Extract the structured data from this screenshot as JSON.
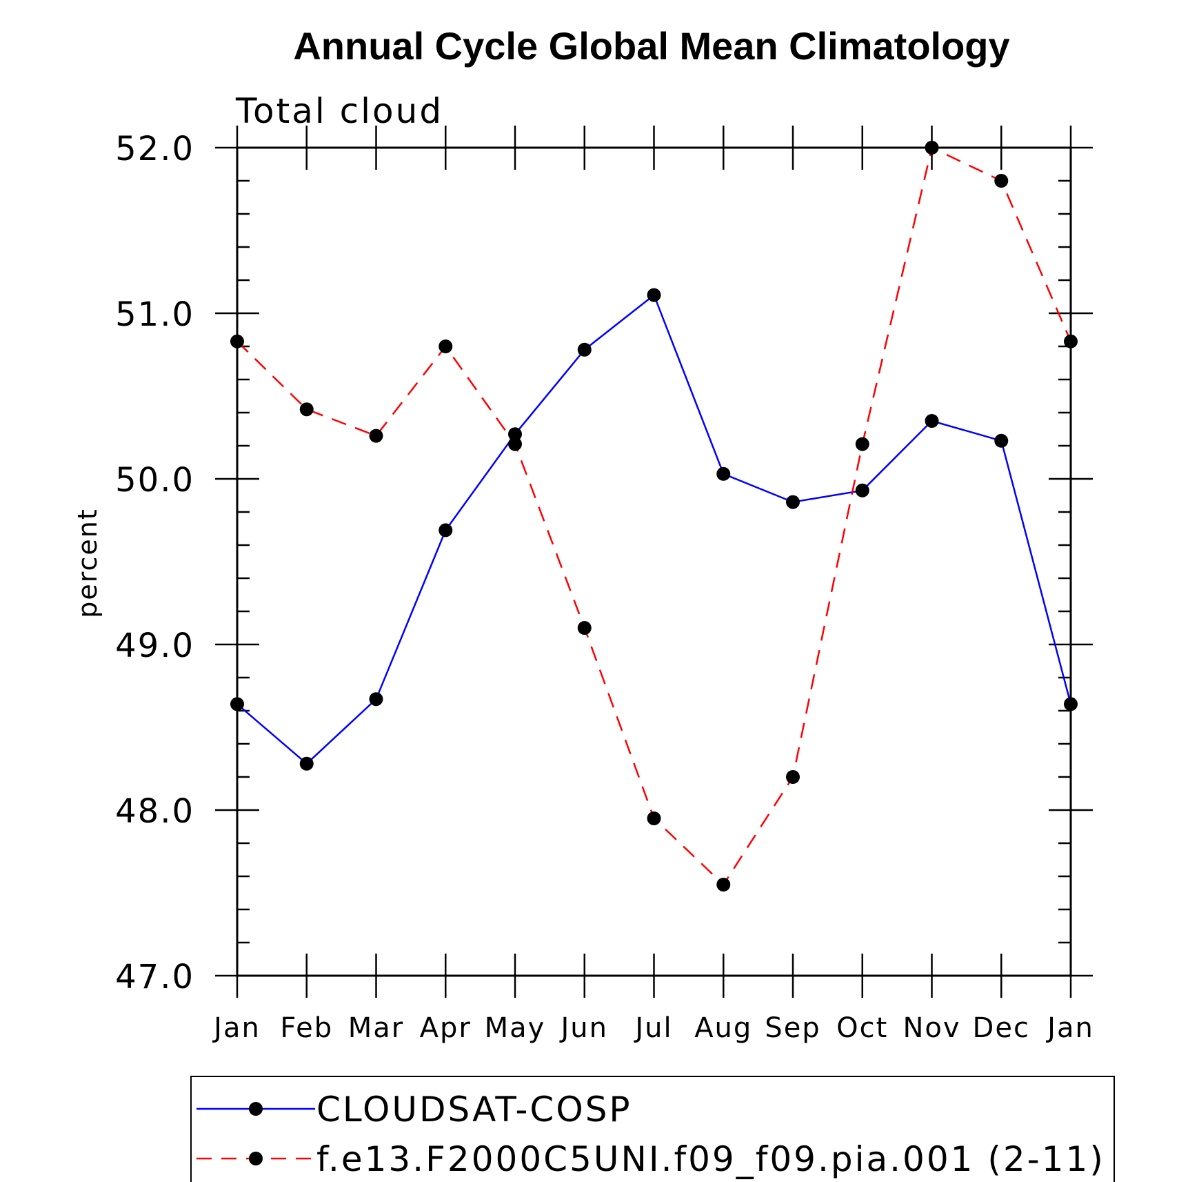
{
  "chart_data": {
    "type": "line",
    "title": "Annual Cycle Global Mean Climatology",
    "subtitle": "Total cloud",
    "xlabel": "",
    "ylabel": "percent",
    "categories": [
      "Jan",
      "Feb",
      "Mar",
      "Apr",
      "May",
      "Jun",
      "Jul",
      "Aug",
      "Sep",
      "Oct",
      "Nov",
      "Dec",
      "Jan"
    ],
    "ylim": [
      47.0,
      52.0
    ],
    "yticks": [
      "47.0",
      "48.0",
      "49.0",
      "50.0",
      "51.0",
      "52.0"
    ],
    "grid": false,
    "legend_position": "bottom",
    "series": [
      {
        "name": "CLOUDSAT-COSP",
        "color": "#0000ff",
        "dash": "solid",
        "marker": "filled-circle",
        "values": [
          48.64,
          48.28,
          48.67,
          49.69,
          50.27,
          50.78,
          51.11,
          50.03,
          49.86,
          49.93,
          50.35,
          50.23,
          48.64
        ]
      },
      {
        "name": "f.e13.F2000C5UNI.f09_f09.pia.001 (2-11)",
        "color": "#ff0000",
        "dash": "dashed",
        "marker": "filled-circle",
        "values": [
          50.83,
          50.42,
          50.26,
          50.8,
          50.21,
          49.1,
          47.95,
          47.55,
          48.2,
          50.21,
          52.0,
          51.8,
          50.83
        ]
      }
    ]
  }
}
